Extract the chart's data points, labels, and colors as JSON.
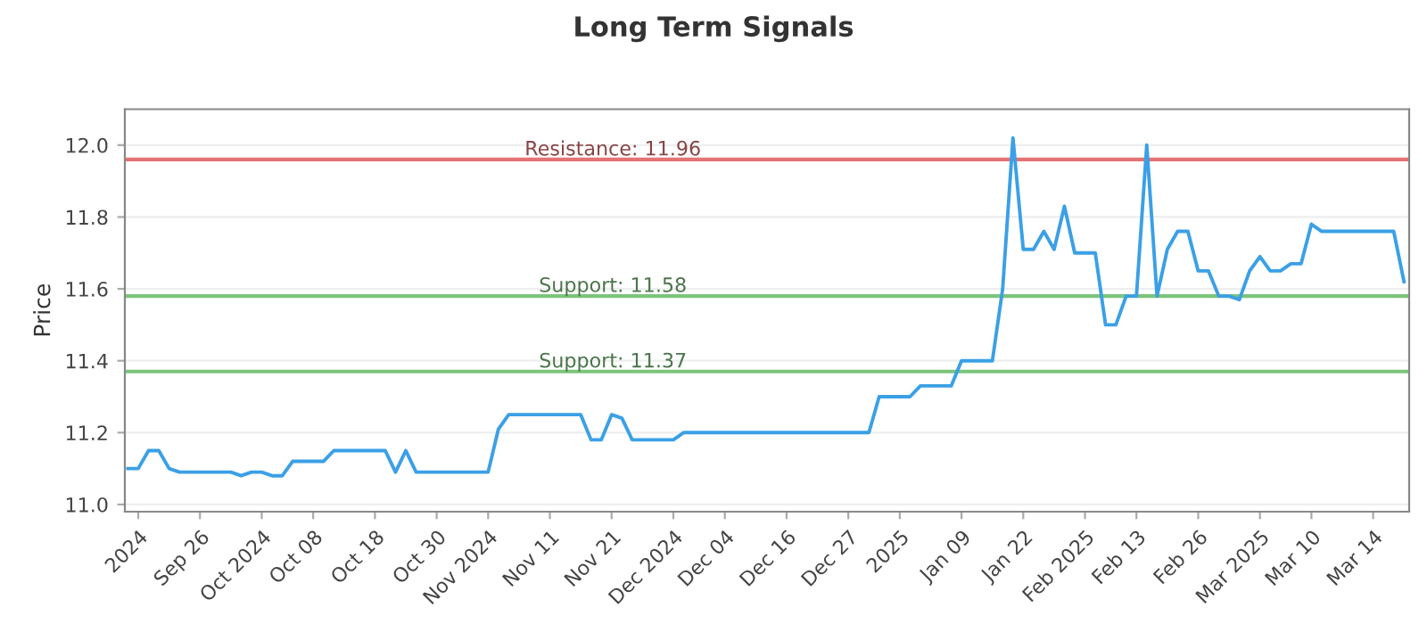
{
  "chart_data": {
    "type": "line",
    "title": "Long Term Signals",
    "ylabel": "Price",
    "categories": [
      null,
      "2024",
      null,
      null,
      null,
      null,
      null,
      "Sep 26",
      null,
      null,
      null,
      null,
      null,
      "Oct 2024",
      null,
      null,
      null,
      null,
      "Oct 08",
      null,
      null,
      null,
      null,
      null,
      "Oct 18",
      null,
      null,
      null,
      null,
      null,
      "Oct 30",
      null,
      null,
      null,
      null,
      "Nov 2024",
      null,
      null,
      null,
      null,
      null,
      "Nov 11",
      null,
      null,
      null,
      null,
      null,
      "Nov 21",
      null,
      null,
      null,
      null,
      null,
      "Dec 2024",
      null,
      null,
      null,
      null,
      "Dec 04",
      null,
      null,
      null,
      null,
      null,
      "Dec 16",
      null,
      null,
      null,
      null,
      null,
      "Dec 27",
      null,
      null,
      null,
      null,
      "2025",
      null,
      null,
      null,
      null,
      null,
      "Jan 09",
      null,
      null,
      null,
      null,
      null,
      "Jan 22",
      null,
      null,
      null,
      null,
      null,
      "Feb 2025",
      null,
      null,
      null,
      null,
      "Feb 13",
      null,
      null,
      null,
      null,
      null,
      "Feb 26",
      null,
      null,
      null,
      null,
      null,
      "Mar 2025",
      null,
      null,
      null,
      null,
      "Mar 10",
      null,
      null,
      null,
      null,
      null,
      "Mar 14",
      null,
      null,
      null
    ],
    "series": [
      {
        "color": "#3ba0e6",
        "values": [
          11.1,
          11.1,
          11.15,
          11.15,
          11.1,
          11.09,
          11.09,
          11.09,
          11.09,
          11.09,
          11.09,
          11.08,
          11.09,
          11.09,
          11.08,
          11.08,
          11.12,
          11.12,
          11.12,
          11.12,
          11.15,
          11.15,
          11.15,
          11.15,
          11.15,
          11.15,
          11.09,
          11.15,
          11.09,
          11.09,
          11.09,
          11.09,
          11.09,
          11.09,
          11.09,
          11.09,
          11.21,
          11.25,
          11.25,
          11.25,
          11.25,
          11.25,
          11.25,
          11.25,
          11.25,
          11.18,
          11.18,
          11.25,
          11.24,
          11.18,
          11.18,
          11.18,
          11.18,
          11.18,
          11.2,
          11.2,
          11.2,
          11.2,
          11.2,
          11.2,
          11.2,
          11.2,
          11.2,
          11.2,
          11.2,
          11.2,
          11.2,
          11.2,
          11.2,
          11.2,
          11.2,
          11.2,
          11.2,
          11.3,
          11.3,
          11.3,
          11.3,
          11.33,
          11.33,
          11.33,
          11.33,
          11.4,
          11.4,
          11.4,
          11.4,
          11.6,
          12.02,
          11.71,
          11.71,
          11.76,
          11.71,
          11.83,
          11.7,
          11.7,
          11.7,
          11.5,
          11.5,
          11.58,
          11.58,
          12.0,
          11.58,
          11.71,
          11.76,
          11.76,
          11.65,
          11.65,
          11.58,
          11.58,
          11.57,
          11.65,
          11.69,
          11.65,
          11.65,
          11.67,
          11.67,
          11.78,
          11.76,
          11.76,
          11.76,
          11.76,
          11.76,
          11.76,
          11.76,
          11.76,
          11.62
        ]
      }
    ],
    "ylim": [
      10.98,
      12.1
    ],
    "yticks": [
      {
        "value": 11.0,
        "label": "11.0"
      },
      {
        "value": 11.2,
        "label": "11.2"
      },
      {
        "value": 11.4,
        "label": "11.4"
      },
      {
        "value": 11.6,
        "label": "11.6"
      },
      {
        "value": 11.8,
        "label": "11.8"
      },
      {
        "value": 12.0,
        "label": "12.0"
      }
    ],
    "grid": "y",
    "ref_lines": [
      {
        "axis": "y",
        "value": 11.96,
        "label": "Resistance: 11.96",
        "color": "#e57373"
      },
      {
        "axis": "y",
        "value": 11.58,
        "label": "Support: 11.58",
        "color": "#7cc47c"
      },
      {
        "axis": "y",
        "value": 11.37,
        "label": "Support: 11.37",
        "color": "#7cc47c"
      }
    ]
  }
}
